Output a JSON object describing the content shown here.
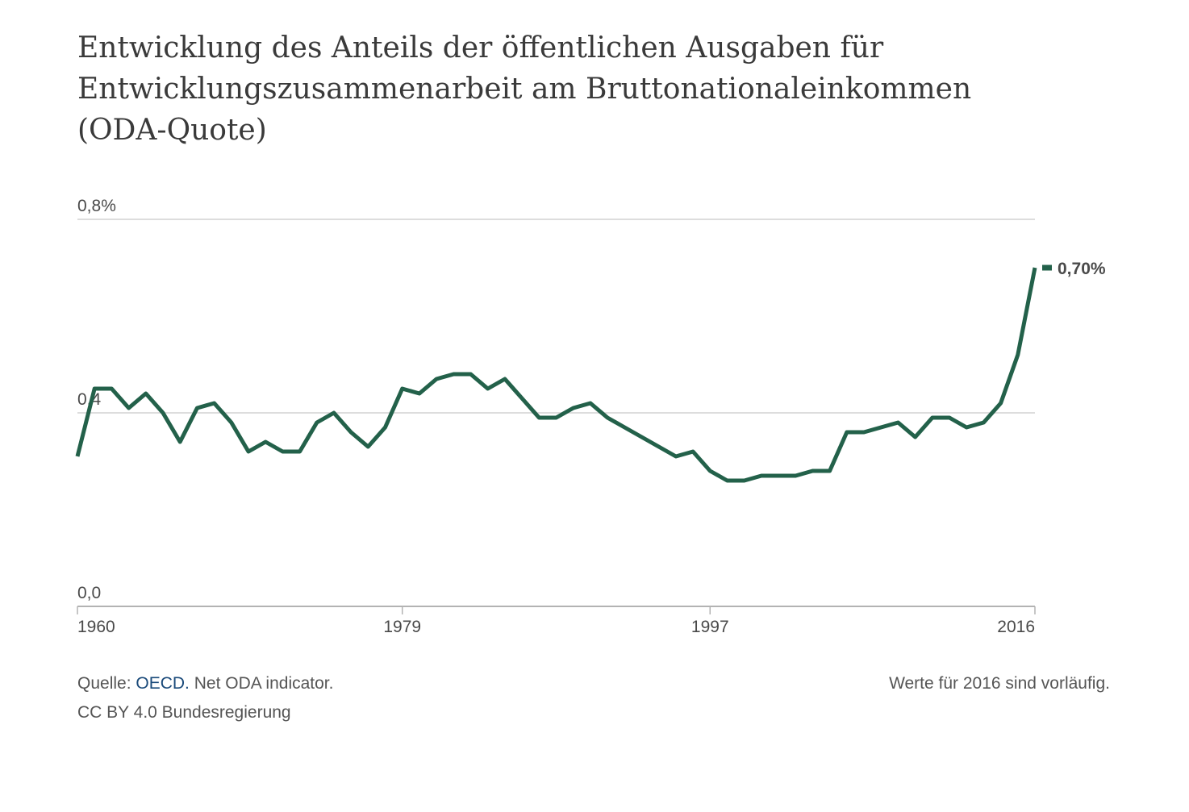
{
  "chart_data": {
    "type": "line",
    "title": "Entwicklung des Anteils der öffentlichen Ausgaben für Entwicklungszusammenarbeit am Bruttonationaleinkommen (ODA-Quote)",
    "xlabel": "",
    "ylabel": "",
    "xlim": [
      1960,
      2016
    ],
    "ylim": [
      0,
      0.8
    ],
    "x_ticks": [
      "1960",
      "1979",
      "1997",
      "2016"
    ],
    "y_ticks": [
      {
        "value": 0.0,
        "label": "0,0"
      },
      {
        "value": 0.4,
        "label": "0,4"
      },
      {
        "value": 0.8,
        "label": "0,8%"
      }
    ],
    "grid": true,
    "line_color": "#23614a",
    "end_label": "0,70%",
    "x": [
      1960,
      1961,
      1962,
      1963,
      1964,
      1965,
      1966,
      1967,
      1968,
      1969,
      1970,
      1971,
      1972,
      1973,
      1974,
      1975,
      1976,
      1977,
      1978,
      1979,
      1980,
      1981,
      1982,
      1983,
      1984,
      1985,
      1986,
      1987,
      1988,
      1989,
      1990,
      1991,
      1992,
      1993,
      1994,
      1995,
      1996,
      1997,
      1998,
      1999,
      2000,
      2001,
      2002,
      2003,
      2004,
      2005,
      2006,
      2007,
      2008,
      2009,
      2010,
      2011,
      2012,
      2013,
      2014,
      2015,
      2016
    ],
    "values": [
      0.31,
      0.45,
      0.45,
      0.41,
      0.44,
      0.4,
      0.34,
      0.41,
      0.42,
      0.38,
      0.32,
      0.34,
      0.32,
      0.32,
      0.38,
      0.4,
      0.36,
      0.33,
      0.37,
      0.45,
      0.44,
      0.47,
      0.48,
      0.48,
      0.45,
      0.47,
      0.43,
      0.39,
      0.39,
      0.41,
      0.42,
      0.39,
      0.37,
      0.35,
      0.33,
      0.31,
      0.32,
      0.28,
      0.26,
      0.26,
      0.27,
      0.27,
      0.27,
      0.28,
      0.28,
      0.36,
      0.36,
      0.37,
      0.38,
      0.35,
      0.39,
      0.39,
      0.37,
      0.38,
      0.42,
      0.52,
      0.7
    ]
  },
  "footer": {
    "source_prefix": "Quelle: ",
    "source_link": "OECD.",
    "source_suffix": " Net ODA indicator.",
    "license": "CC BY 4.0 Bundesregierung",
    "note": "Werte für 2016 sind vorläufig."
  }
}
